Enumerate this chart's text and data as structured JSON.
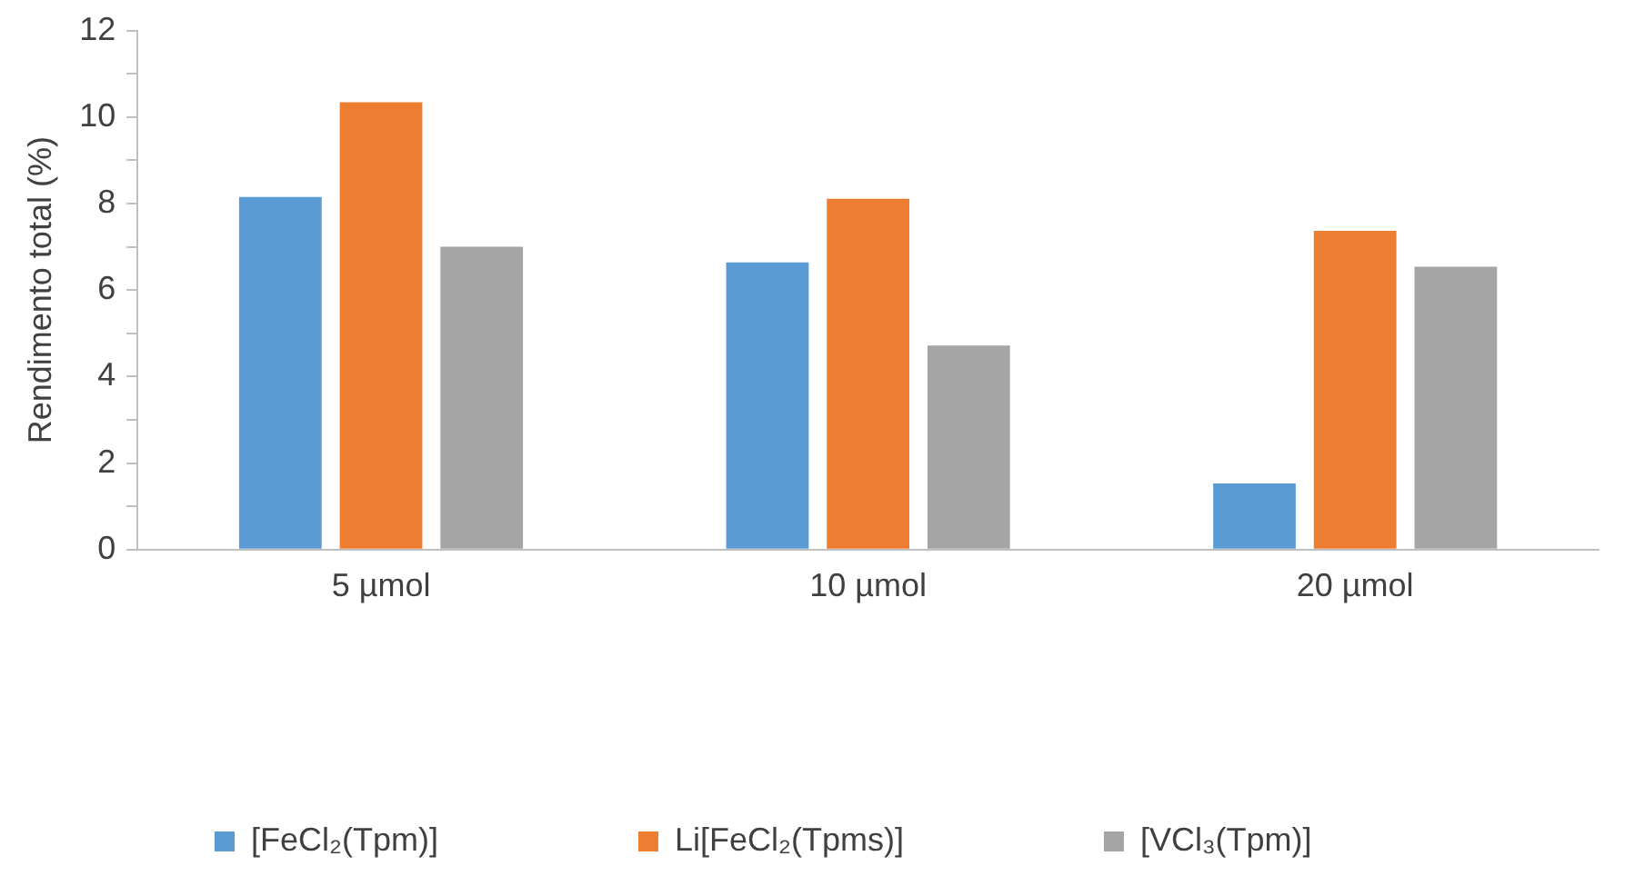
{
  "chart_data": {
    "type": "bar",
    "ylabel": "Rendimento total (%)",
    "categories": [
      "5 µmol",
      "10 µmol",
      "20 µmol"
    ],
    "series": [
      {
        "name": "[FeCl₂(Tpm)]",
        "color": "#5b9bd5",
        "values": [
          8.15,
          6.64,
          1.53
        ]
      },
      {
        "name": "Li[FeCl₂(Tpms)]",
        "color": "#ed7d31",
        "values": [
          10.34,
          8.11,
          7.37
        ]
      },
      {
        "name": "[VCl₃(Tpm)]",
        "color": "#a5a5a5",
        "values": [
          7.0,
          4.72,
          6.54
        ]
      }
    ],
    "ylim": [
      0,
      12
    ],
    "yticks": [
      0,
      {
        "value": 1,
        "label": null
      },
      2,
      {
        "value": 3,
        "label": null
      },
      4,
      {
        "value": 5,
        "label": null
      },
      6,
      {
        "value": 7,
        "label": null
      },
      8,
      {
        "value": 9,
        "label": null
      },
      10,
      {
        "value": 11,
        "label": null
      },
      12
    ],
    "grid": false,
    "legend": "bottom"
  }
}
